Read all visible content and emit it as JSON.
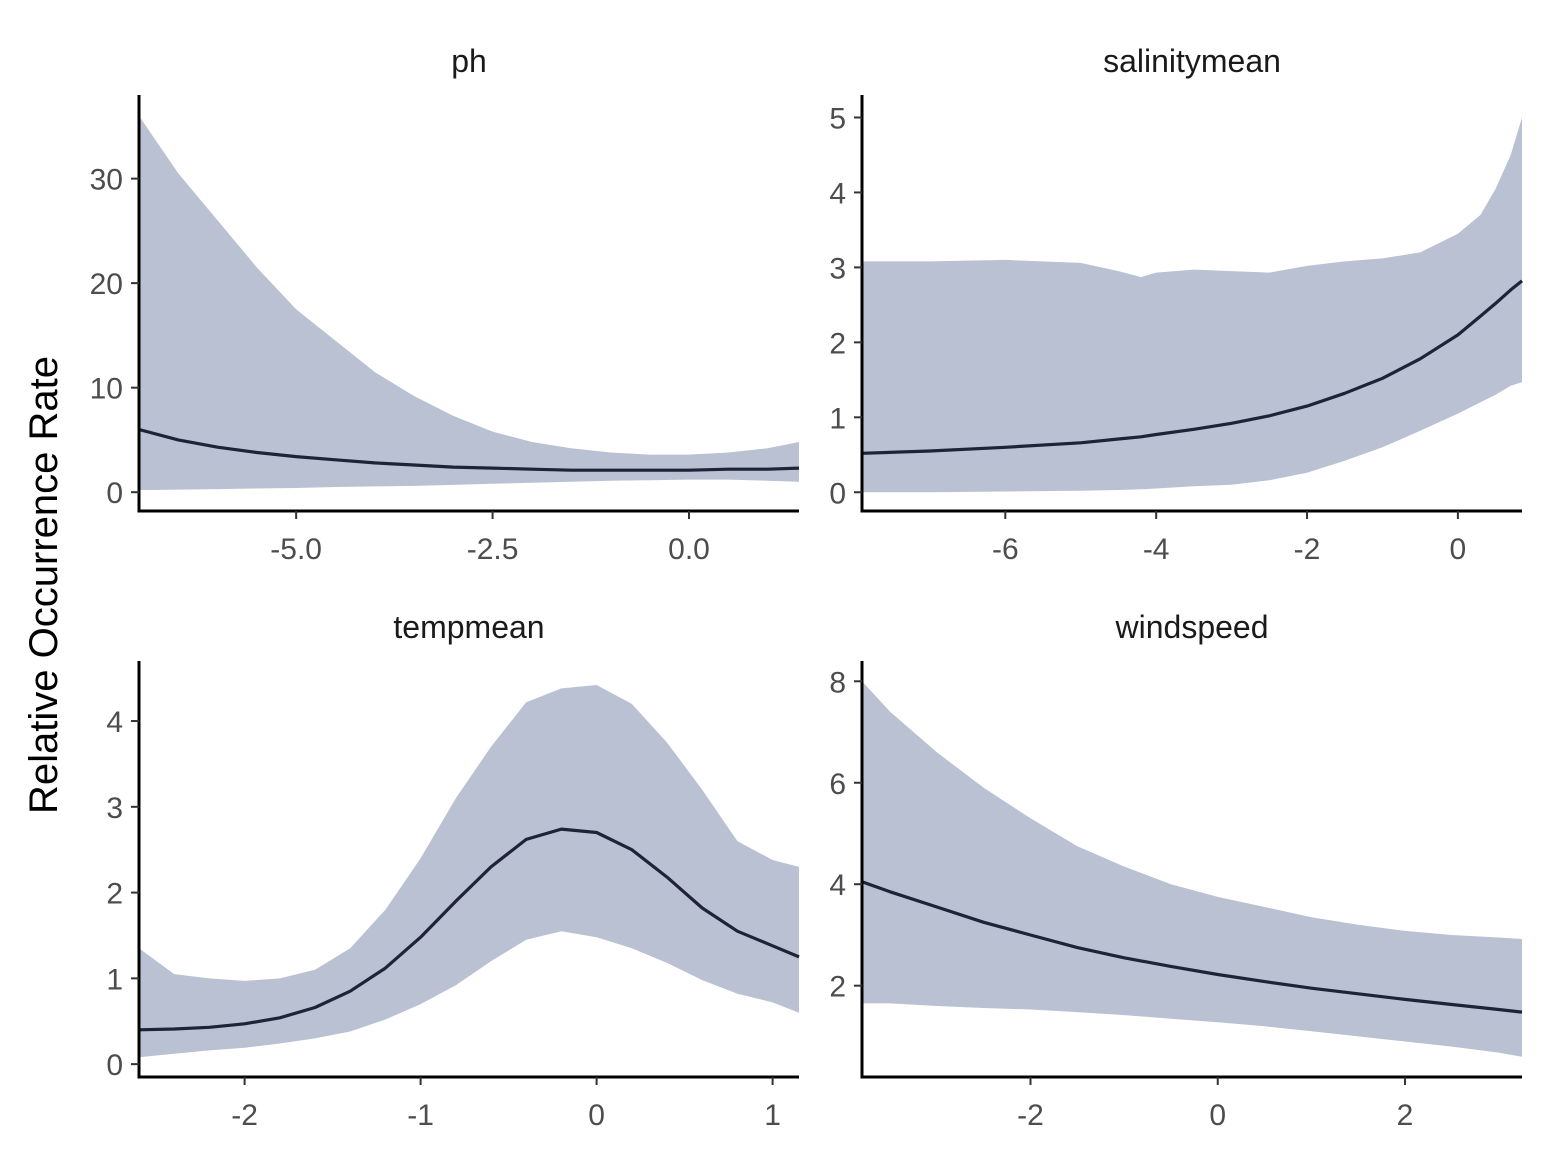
{
  "colors": {
    "band": "#bac1d2",
    "line": "#1e2338"
  },
  "chart_data": [
    {
      "type": "line",
      "title": "ph",
      "ylabel": "Relative Occurrence Rate",
      "xlim": [
        -7.0,
        1.4
      ],
      "ylim": [
        -1.8,
        38
      ],
      "x_ticks": [
        -5.0,
        -2.5,
        0.0
      ],
      "x_tick_labels": [
        "-5.0",
        "-2.5",
        "0.0"
      ],
      "y_ticks": [
        0,
        10,
        20,
        30
      ],
      "y_tick_labels": [
        "0",
        "10",
        "20",
        "30"
      ],
      "x": [
        -7.0,
        -6.5,
        -6.0,
        -5.5,
        -5.0,
        -4.5,
        -4.0,
        -3.5,
        -3.0,
        -2.5,
        -2.0,
        -1.5,
        -1.0,
        -0.5,
        0.0,
        0.5,
        1.0,
        1.4
      ],
      "mean": [
        6.0,
        5.0,
        4.3,
        3.8,
        3.4,
        3.1,
        2.8,
        2.6,
        2.4,
        2.3,
        2.2,
        2.1,
        2.1,
        2.1,
        2.1,
        2.2,
        2.2,
        2.3
      ],
      "upper": [
        36.0,
        30.5,
        26.0,
        21.5,
        17.5,
        14.5,
        11.5,
        9.2,
        7.3,
        5.8,
        4.8,
        4.2,
        3.8,
        3.6,
        3.6,
        3.8,
        4.2,
        4.8
      ],
      "lower": [
        0.2,
        0.25,
        0.3,
        0.35,
        0.4,
        0.5,
        0.55,
        0.6,
        0.7,
        0.8,
        0.9,
        1.0,
        1.1,
        1.15,
        1.2,
        1.2,
        1.1,
        1.0
      ]
    },
    {
      "type": "line",
      "title": "salinitymean",
      "xlim": [
        -7.9,
        0.85
      ],
      "ylim": [
        -0.25,
        5.3
      ],
      "x_ticks": [
        -6,
        -4,
        -2,
        0
      ],
      "x_tick_labels": [
        "-6",
        "-4",
        "-2",
        "0"
      ],
      "y_ticks": [
        0,
        1,
        2,
        3,
        4,
        5
      ],
      "y_tick_labels": [
        "0",
        "1",
        "2",
        "3",
        "4",
        "5"
      ],
      "x": [
        -7.9,
        -7.0,
        -6.0,
        -5.0,
        -4.5,
        -4.2,
        -4.0,
        -3.5,
        -3.0,
        -2.5,
        -2.0,
        -1.5,
        -1.0,
        -0.5,
        0.0,
        0.3,
        0.5,
        0.7,
        0.85
      ],
      "mean": [
        0.52,
        0.55,
        0.6,
        0.66,
        0.71,
        0.74,
        0.77,
        0.84,
        0.92,
        1.02,
        1.15,
        1.32,
        1.52,
        1.78,
        2.1,
        2.35,
        2.52,
        2.7,
        2.82
      ],
      "upper": [
        3.08,
        3.08,
        3.1,
        3.06,
        2.95,
        2.87,
        2.93,
        2.97,
        2.95,
        2.93,
        3.02,
        3.08,
        3.12,
        3.2,
        3.45,
        3.7,
        4.05,
        4.5,
        5.0
      ],
      "lower": [
        0.0,
        0.0,
        0.01,
        0.02,
        0.03,
        0.04,
        0.05,
        0.08,
        0.1,
        0.16,
        0.26,
        0.42,
        0.6,
        0.82,
        1.05,
        1.2,
        1.3,
        1.42,
        1.47
      ]
    },
    {
      "type": "line",
      "title": "tempmean",
      "xlim": [
        -2.6,
        1.15
      ],
      "ylim": [
        -0.15,
        4.7
      ],
      "x_ticks": [
        -2,
        -1,
        0,
        1
      ],
      "x_tick_labels": [
        "-2",
        "-1",
        "0",
        "1"
      ],
      "y_ticks": [
        0,
        1,
        2,
        3,
        4
      ],
      "y_tick_labels": [
        "0",
        "1",
        "2",
        "3",
        "4"
      ],
      "x": [
        -2.6,
        -2.4,
        -2.2,
        -2.0,
        -1.8,
        -1.6,
        -1.4,
        -1.2,
        -1.0,
        -0.8,
        -0.6,
        -0.4,
        -0.2,
        0.0,
        0.2,
        0.4,
        0.6,
        0.8,
        1.0,
        1.15
      ],
      "mean": [
        0.4,
        0.41,
        0.43,
        0.47,
        0.54,
        0.66,
        0.85,
        1.12,
        1.48,
        1.9,
        2.3,
        2.62,
        2.74,
        2.7,
        2.5,
        2.18,
        1.82,
        1.55,
        1.38,
        1.25
      ],
      "upper": [
        1.35,
        1.05,
        1.0,
        0.97,
        1.0,
        1.1,
        1.35,
        1.8,
        2.4,
        3.1,
        3.7,
        4.22,
        4.38,
        4.42,
        4.2,
        3.75,
        3.2,
        2.6,
        2.38,
        2.3
      ],
      "lower": [
        0.08,
        0.12,
        0.16,
        0.19,
        0.24,
        0.3,
        0.38,
        0.52,
        0.7,
        0.92,
        1.2,
        1.45,
        1.55,
        1.48,
        1.35,
        1.18,
        0.98,
        0.82,
        0.72,
        0.6
      ]
    },
    {
      "type": "line",
      "title": "windspeed",
      "xlim": [
        -3.8,
        3.25
      ],
      "ylim": [
        0.2,
        8.4
      ],
      "x_ticks": [
        -2,
        0,
        2
      ],
      "x_tick_labels": [
        "-2",
        "0",
        "2"
      ],
      "y_ticks": [
        2,
        4,
        6,
        8
      ],
      "y_tick_labels": [
        "2",
        "4",
        "6",
        "8"
      ],
      "x": [
        -3.8,
        -3.5,
        -3.0,
        -2.5,
        -2.0,
        -1.5,
        -1.0,
        -0.5,
        0.0,
        0.5,
        1.0,
        1.5,
        2.0,
        2.5,
        3.0,
        3.25
      ],
      "mean": [
        4.05,
        3.85,
        3.55,
        3.25,
        3.0,
        2.75,
        2.55,
        2.38,
        2.22,
        2.08,
        1.95,
        1.84,
        1.73,
        1.63,
        1.53,
        1.48
      ],
      "upper": [
        8.0,
        7.4,
        6.6,
        5.9,
        5.3,
        4.75,
        4.35,
        4.0,
        3.75,
        3.55,
        3.35,
        3.2,
        3.08,
        3.0,
        2.95,
        2.92
      ],
      "lower": [
        1.65,
        1.65,
        1.6,
        1.56,
        1.53,
        1.48,
        1.42,
        1.35,
        1.28,
        1.2,
        1.1,
        1.0,
        0.9,
        0.8,
        0.68,
        0.6
      ]
    }
  ]
}
